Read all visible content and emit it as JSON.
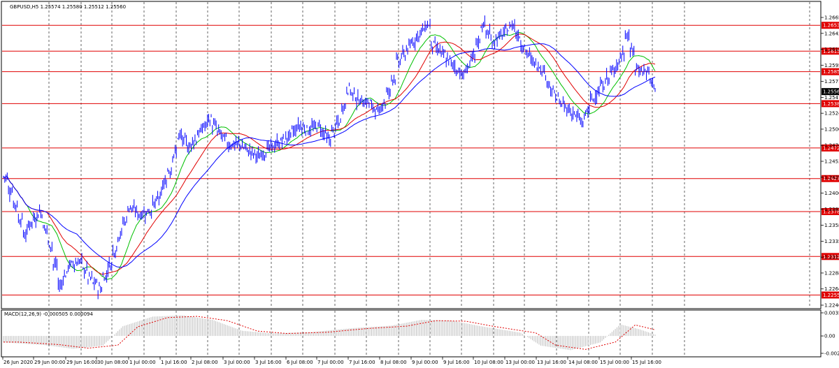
{
  "window": {
    "symbol_info": "GBPUSD,H5  1.25574 1.25580 1.25512 1.25560",
    "macd_label": "MACD(12,26,9) -0.000505 0.000094"
  },
  "colors": {
    "candle": "#0000ff",
    "level_line": "#e00000",
    "ma_fast": "#00c000",
    "ma_mid": "#e00000",
    "ma_slow": "#0000ff",
    "grid": "#000000",
    "macd_hist": "#c0c0c0",
    "macd_signal": "#e00000",
    "current_price_bg": "#000000"
  },
  "chart_data": {
    "type": "candlestick",
    "symbol": "GBPUSD",
    "timeframe": "H5",
    "ohlc_header": {
      "open": 1.25574,
      "high": 1.2558,
      "low": 1.25512,
      "close": 1.2556
    },
    "current_price": "1.25560",
    "y_ticks": [
      "1.26655",
      "1.26420",
      "1.26185",
      "1.25950",
      "1.25710",
      "1.25475",
      "1.25240",
      "1.25005",
      "1.24765",
      "1.24530",
      "1.24295",
      "1.24060",
      "1.23825",
      "1.23585",
      "1.23350",
      "1.23115",
      "1.22880",
      "1.22645",
      "1.22405"
    ],
    "levels": [
      "1.26539",
      "1.26157",
      "1.25854",
      "1.25382",
      "1.24727",
      "1.24275",
      "1.23787",
      "1.23124",
      "1.22555"
    ],
    "x_labels": [
      "26 Jun 2020",
      "29 Jun 00:00",
      "29 Jun 16:00",
      "30 Jun 08:00",
      "1 Jul 00:00",
      "1 Jul 16:00",
      "2 Jul 08:00",
      "3 Jul 00:00",
      "3 Jul 16:00",
      "6 Jul 08:00",
      "7 Jul 00:00",
      "7 Jul 16:00",
      "8 Jul 08:00",
      "9 Jul 00:00",
      "9 Jul 16:00",
      "10 Jul 08:00",
      "13 Jul 00:00",
      "13 Jul 16:00",
      "14 Jul 08:00",
      "15 Jul 00:00",
      "15 Jul 16:00"
    ],
    "price_path": [
      [
        0,
        1.243
      ],
      [
        2,
        1.239
      ],
      [
        4,
        1.2345
      ],
      [
        5,
        1.2362
      ],
      [
        7,
        1.2378
      ],
      [
        9,
        1.233
      ],
      [
        11,
        1.227
      ],
      [
        13,
        1.23
      ],
      [
        15,
        1.2305
      ],
      [
        17,
        1.228
      ],
      [
        19,
        1.2265
      ],
      [
        21,
        1.23
      ],
      [
        23,
        1.2345
      ],
      [
        25,
        1.2385
      ],
      [
        27,
        1.2375
      ],
      [
        29,
        1.238
      ],
      [
        31,
        1.24
      ],
      [
        33,
        1.244
      ],
      [
        35,
        1.249
      ],
      [
        37,
        1.2475
      ],
      [
        39,
        1.2495
      ],
      [
        41,
        1.2515
      ],
      [
        43,
        1.2495
      ],
      [
        45,
        1.2478
      ],
      [
        47,
        1.2478
      ],
      [
        49,
        1.2468
      ],
      [
        51,
        1.246
      ],
      [
        53,
        1.2472
      ],
      [
        55,
        1.248
      ],
      [
        57,
        1.249
      ],
      [
        59,
        1.2505
      ],
      [
        61,
        1.25
      ],
      [
        63,
        1.2505
      ],
      [
        65,
        1.2485
      ],
      [
        67,
        1.251
      ],
      [
        69,
        1.256
      ],
      [
        71,
        1.2543
      ],
      [
        73,
        1.254
      ],
      [
        75,
        1.2525
      ],
      [
        77,
        1.2555
      ],
      [
        79,
        1.26
      ],
      [
        81,
        1.262
      ],
      [
        83,
        1.264
      ],
      [
        85,
        1.2655
      ],
      [
        86,
        1.2625
      ],
      [
        88,
        1.261
      ],
      [
        90,
        1.2595
      ],
      [
        92,
        1.258
      ],
      [
        94,
        1.2605
      ],
      [
        96,
        1.2655
      ],
      [
        98,
        1.263
      ],
      [
        100,
        1.264
      ],
      [
        102,
        1.2655
      ],
      [
        104,
        1.2625
      ],
      [
        106,
        1.26
      ],
      [
        108,
        1.259
      ],
      [
        110,
        1.2555
      ],
      [
        112,
        1.2535
      ],
      [
        114,
        1.2525
      ],
      [
        116,
        1.251
      ],
      [
        118,
        1.2545
      ],
      [
        120,
        1.2565
      ],
      [
        122,
        1.2585
      ],
      [
        124,
        1.261
      ],
      [
        125,
        1.264
      ],
      [
        127,
        1.259
      ],
      [
        129,
        1.2585
      ],
      [
        130,
        1.257
      ],
      [
        131,
        1.256
      ]
    ],
    "macd": {
      "zero": "0.00",
      "ticks": [
        "0.003585",
        "0.00",
        "-0.00270"
      ],
      "histogram_path": [
        [
          0,
          -0.001
        ],
        [
          8,
          -0.0014
        ],
        [
          14,
          -0.002
        ],
        [
          20,
          -0.0015
        ],
        [
          24,
          0.0015
        ],
        [
          30,
          0.003
        ],
        [
          36,
          0.0032
        ],
        [
          42,
          0.0025
        ],
        [
          48,
          0.0008
        ],
        [
          54,
          0.0004
        ],
        [
          62,
          0.0006
        ],
        [
          70,
          0.0012
        ],
        [
          78,
          0.0016
        ],
        [
          84,
          0.0025
        ],
        [
          90,
          0.0024
        ],
        [
          96,
          0.0015
        ],
        [
          100,
          0.001
        ],
        [
          104,
          0.0005
        ],
        [
          108,
          -0.0015
        ],
        [
          114,
          -0.0022
        ],
        [
          120,
          -0.001
        ],
        [
          124,
          0.0018
        ],
        [
          128,
          0.001
        ],
        [
          131,
          0.0002
        ]
      ]
    }
  }
}
